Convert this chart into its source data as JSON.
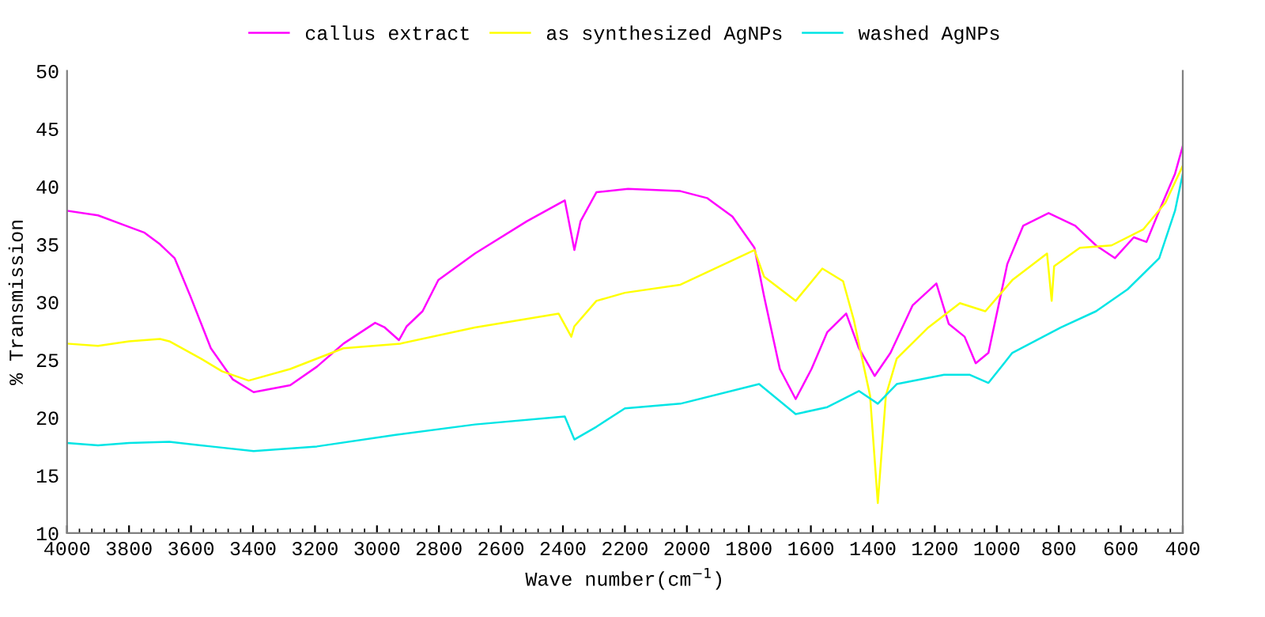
{
  "chart_data": {
    "type": "line",
    "xlabel": "Wave number(cm$^{−1}$)",
    "ylabel": "% Transmission",
    "xlim": [
      4000,
      400
    ],
    "xticks": [
      4000,
      3800,
      3600,
      3400,
      3200,
      3000,
      2800,
      2600,
      2400,
      2200,
      2000,
      1800,
      1600,
      1400,
      1200,
      1000,
      800,
      600,
      400
    ],
    "ylim": [
      10,
      50
    ],
    "yticks": [
      10,
      15,
      20,
      25,
      30,
      35,
      40,
      45,
      50
    ],
    "grid": false,
    "legend": "top",
    "marker": "none",
    "line_style": "solid",
    "series": [
      {
        "name": "callus extract",
        "color": "#ff00ff",
        "x": [
          4000,
          3900,
          3800,
          3750,
          3700,
          3653,
          3602,
          3536,
          3465,
          3398,
          3280,
          3194,
          3108,
          3006,
          2975,
          2929,
          2904,
          2853,
          2802,
          2684,
          2516,
          2394,
          2363,
          2343,
          2292,
          2190,
          2021,
          1935,
          1853,
          1782,
          1751,
          1700,
          1649,
          1598,
          1547,
          1486,
          1445,
          1394,
          1343,
          1272,
          1195,
          1155,
          1104,
          1068,
          1027,
          966,
          915,
          833,
          747,
          680,
          619,
          558,
          517,
          476,
          425,
          400
        ],
        "values": [
          37.9,
          37.5,
          36.5,
          36,
          35,
          33.8,
          30.5,
          26,
          23.3,
          22.2,
          22.8,
          24.4,
          26.4,
          28.2,
          27.8,
          26.7,
          27.9,
          29.2,
          31.9,
          34.2,
          37,
          38.8,
          34.5,
          37,
          39.5,
          39.8,
          39.6,
          39,
          37.4,
          34.7,
          30.5,
          24.2,
          21.6,
          24.2,
          27.4,
          29,
          26,
          23.6,
          25.6,
          29.7,
          31.6,
          28.1,
          27,
          24.7,
          25.6,
          33.3,
          36.6,
          37.7,
          36.6,
          34.9,
          33.8,
          35.6,
          35.2,
          37.9,
          41.1,
          43.5
        ]
      },
      {
        "name": "as synthesized AgNPs",
        "color": "#ffff00",
        "x": [
          4000,
          3900,
          3800,
          3700,
          3670,
          3568,
          3500,
          3414,
          3280,
          3108,
          2924,
          2684,
          2414,
          2373,
          2363,
          2292,
          2200,
          2021,
          1782,
          1751,
          1649,
          1563,
          1496,
          1461,
          1409,
          1384,
          1358,
          1323,
          1221,
          1119,
          1037,
          950,
          838,
          823,
          815,
          732,
          630,
          527,
          456,
          400
        ],
        "values": [
          26.4,
          26.2,
          26.6,
          26.8,
          26.6,
          25.1,
          24,
          23.2,
          24.2,
          26,
          26.4,
          27.8,
          29,
          27,
          27.9,
          30.1,
          30.8,
          31.5,
          34.5,
          32.2,
          30.1,
          32.9,
          31.8,
          28.4,
          21.9,
          12.6,
          21.9,
          25.1,
          27.8,
          29.9,
          29.2,
          31.9,
          34.2,
          30.1,
          33.1,
          34.7,
          34.9,
          36.3,
          38.6,
          41.8
        ]
      },
      {
        "name": "washed AgNPs",
        "color": "#00e5e5",
        "x": [
          4000,
          3900,
          3800,
          3670,
          3536,
          3398,
          3194,
          2940,
          2684,
          2394,
          2363,
          2292,
          2200,
          2021,
          1767,
          1649,
          1547,
          1445,
          1384,
          1323,
          1170,
          1087,
          1027,
          950,
          793,
          680,
          578,
          476,
          425,
          400
        ],
        "values": [
          17.8,
          17.6,
          17.8,
          17.9,
          17.5,
          17.1,
          17.5,
          18.5,
          19.4,
          20.1,
          18.1,
          19.2,
          20.8,
          21.2,
          22.9,
          20.3,
          20.9,
          22.3,
          21.2,
          22.9,
          23.7,
          23.7,
          23,
          25.6,
          27.8,
          29.2,
          31.1,
          33.8,
          37.9,
          41.1
        ]
      }
    ]
  }
}
